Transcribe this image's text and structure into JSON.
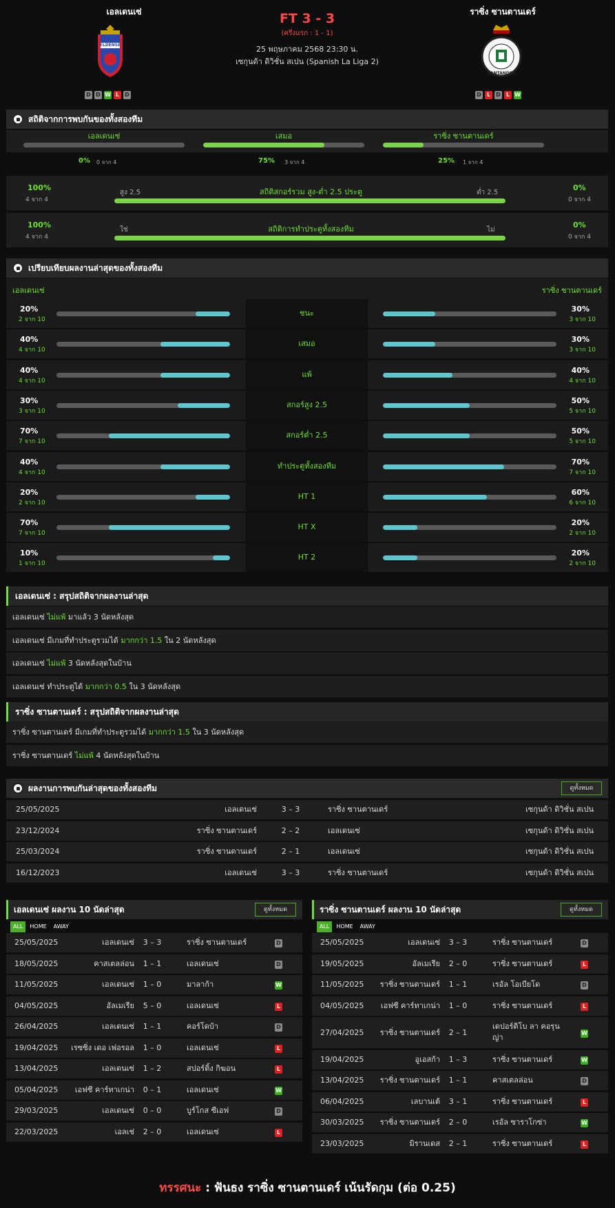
{
  "match": {
    "home_team": "เอลเดนเซ่",
    "away_team": "ราซิ่ง ซานตานเดร์",
    "score": "FT 3 - 3",
    "halftime": "(ครึ่งแรก : 1 - 1)",
    "datetime": "25 พฤษภาคม 2568 23:30 น.",
    "league": "เซกุนด้า ดิวิชั่น สเปน (Spanish La Liga 2)",
    "home_form": [
      "D",
      "D",
      "W",
      "L",
      "D"
    ],
    "away_form": [
      "D",
      "L",
      "D",
      "L",
      "W"
    ],
    "home_logo_text": "ELDENSE",
    "away_logo_text": "SANTANDER"
  },
  "h2h_stats": {
    "title": "สถิติจากการพบกันของทั้งสองทีม",
    "cols": [
      {
        "label": "เอลเดนเซ่",
        "pct": "0%",
        "count": "0 จาก 4",
        "fill": 0
      },
      {
        "label": "เสมอ",
        "pct": "75%",
        "count": "3 จาก 4",
        "fill": 75
      },
      {
        "label": "ราซิ่ง ซานตานเดร์",
        "pct": "25%",
        "count": "1 จาก 4",
        "fill": 25
      }
    ],
    "ou": {
      "left_pct": "100%",
      "left_count": "4 จาก 4",
      "left_label": "สูง 2.5",
      "title": "สถิติสกอร์รวม สูง-ต่ำ 2.5 ประตู",
      "right_label": "ต่ำ 2.5",
      "right_pct": "0%",
      "right_count": "0 จาก 4",
      "fill": 100
    },
    "btts": {
      "left_pct": "100%",
      "left_count": "4 จาก 4",
      "left_label": "ใช่",
      "title": "สถิติการทำประตูทั้งสองทีม",
      "right_label": "ไม่",
      "right_pct": "0%",
      "right_count": "0 จาก 4",
      "fill": 100
    }
  },
  "compare": {
    "title": "เปรียบเทียบผลงานล่าสุดของทั้งสองทีม",
    "home": "เอลเดนเซ่",
    "away": "ราซิ่ง ซานตานเดร์",
    "rows": [
      {
        "label": "ชนะ",
        "hp": "20%",
        "hc": "2 จาก 10",
        "hv": 20,
        "ap": "30%",
        "ac": "3 จาก 10",
        "av": 30
      },
      {
        "label": "เสมอ",
        "hp": "40%",
        "hc": "4 จาก 10",
        "hv": 40,
        "ap": "30%",
        "ac": "3 จาก 10",
        "av": 30
      },
      {
        "label": "แพ้",
        "hp": "40%",
        "hc": "4 จาก 10",
        "hv": 40,
        "ap": "40%",
        "ac": "4 จาก 10",
        "av": 40
      },
      {
        "label": "สกอร์สูง 2.5",
        "hp": "30%",
        "hc": "3 จาก 10",
        "hv": 30,
        "ap": "50%",
        "ac": "5 จาก 10",
        "av": 50
      },
      {
        "label": "สกอร์ต่ำ 2.5",
        "hp": "70%",
        "hc": "7 จาก 10",
        "hv": 70,
        "ap": "50%",
        "ac": "5 จาก 10",
        "av": 50
      },
      {
        "label": "ทำประตูทั้งสองทีม",
        "hp": "40%",
        "hc": "4 จาก 10",
        "hv": 40,
        "ap": "70%",
        "ac": "7 จาก 10",
        "av": 70
      },
      {
        "label": "HT 1",
        "hp": "20%",
        "hc": "2 จาก 10",
        "hv": 20,
        "ap": "60%",
        "ac": "6 จาก 10",
        "av": 60
      },
      {
        "label": "HT X",
        "hp": "70%",
        "hc": "7 จาก 10",
        "hv": 70,
        "ap": "20%",
        "ac": "2 จาก 10",
        "av": 20
      },
      {
        "label": "HT 2",
        "hp": "10%",
        "hc": "1 จาก 10",
        "hv": 10,
        "ap": "20%",
        "ac": "2 จาก 10",
        "av": 20
      }
    ]
  },
  "home_summary": {
    "title": "เอลเดนเซ่ : สรุปสถิติจากผลงานล่าสุด",
    "rows": [
      [
        "เอลเดนเซ่ ",
        "ไม่แพ้",
        " มาแล้ว 3 นัดหลังสุด"
      ],
      [
        "เอลเดนเซ่ มีเกมที่ทำประตูรวมได้ ",
        "มากกว่า 1.5",
        " ใน 2 นัดหลังสุด"
      ],
      [
        "เอลเดนเซ่ ",
        "ไม่แพ้",
        " 3 นัดหลังสุดในบ้าน"
      ],
      [
        "เอลเดนเซ่ ทำประตูได้ ",
        "มากกว่า 0.5",
        " ใน 3 นัดหลังสุด"
      ]
    ]
  },
  "away_summary": {
    "title": "ราซิ่ง ซานตานเดร์ : สรุปสถิติจากผลงานล่าสุด",
    "rows": [
      [
        "ราซิ่ง ซานตานเดร์ มีเกมที่ทำประตูรวมได้ ",
        "มากกว่า 1.5",
        " ใน 3 นัดหลังสุด"
      ],
      [
        "ราซิ่ง ซานตานเดร์ ",
        "ไม่แพ้",
        " 4 นัดหลังสุดในบ้าน"
      ]
    ]
  },
  "h2h": {
    "title": "ผลงานการพบกันล่าสุดของทั้งสองทีม",
    "view_all": "ดูทั้งหมด",
    "rows": [
      {
        "date": "25/05/2025",
        "home": "เอลเดนเซ่",
        "score": "3 – 3",
        "away": "ราซิ่ง ซานตานเดร์",
        "league": "เซกุนด้า ดิวิชั่น สเปน"
      },
      {
        "date": "23/12/2024",
        "home": "ราซิ่ง ซานตานเดร์",
        "score": "2 – 2",
        "away": "เอลเดนเซ่",
        "league": "เซกุนด้า ดิวิชั่น สเปน"
      },
      {
        "date": "25/03/2024",
        "home": "ราซิ่ง ซานตานเดร์",
        "score": "2 – 1",
        "away": "เอลเดนเซ่",
        "league": "เซกุนด้า ดิวิชั่น สเปน"
      },
      {
        "date": "16/12/2023",
        "home": "เอลเดนเซ่",
        "score": "3 – 3",
        "away": "ราซิ่ง ซานตานเดร์",
        "league": "เซกุนด้า ดิวิชั่น สเปน"
      }
    ]
  },
  "home_last10": {
    "title": "เอลเดนเซ่ ผลงาน 10 นัดล่าสุด",
    "view_all": "ดูทั้งหมด",
    "tabs": [
      "ALL",
      "HOME",
      "AWAY"
    ],
    "rows": [
      {
        "date": "25/05/2025",
        "home": "เอลเดนเซ่",
        "score": "3 – 3",
        "away": "ราซิ่ง ซานตานเดร์",
        "res": "D"
      },
      {
        "date": "18/05/2025",
        "home": "คาสเตลล่อน",
        "score": "1 – 1",
        "away": "เอลเดนเซ่",
        "res": "D"
      },
      {
        "date": "11/05/2025",
        "home": "เอลเดนเซ่",
        "score": "1 – 0",
        "away": "มาลาก้า",
        "res": "W"
      },
      {
        "date": "04/05/2025",
        "home": "อัลเมเรีย",
        "score": "5 – 0",
        "away": "เอลเดนเซ่",
        "res": "L"
      },
      {
        "date": "26/04/2025",
        "home": "เอลเดนเซ่",
        "score": "1 – 1",
        "away": "คอร์โดบ้า",
        "res": "D"
      },
      {
        "date": "19/04/2025",
        "home": "เรซซิ่ง เดอ เฟอรอล",
        "score": "1 – 0",
        "away": "เอลเดนเซ่",
        "res": "L"
      },
      {
        "date": "13/04/2025",
        "home": "เอลเดนเซ่",
        "score": "1 – 2",
        "away": "สปอร์ติ้ง กิฆอน",
        "res": "L"
      },
      {
        "date": "05/04/2025",
        "home": "เอฟซี คาร์ทาเกน่า",
        "score": "0 – 1",
        "away": "เอลเดนเซ่",
        "res": "W"
      },
      {
        "date": "29/03/2025",
        "home": "เอลเดนเซ่",
        "score": "0 – 0",
        "away": "บูร์โกส ซีเอฟ",
        "res": "D"
      },
      {
        "date": "22/03/2025",
        "home": "เอลเช่",
        "score": "2 – 0",
        "away": "เอลเดนเซ่",
        "res": "L"
      }
    ]
  },
  "away_last10": {
    "title": "ราซิ่ง ซานตานเดร์ ผลงาน 10 นัดล่าสุด",
    "view_all": "ดูทั้งหมด",
    "tabs": [
      "ALL",
      "HOME",
      "AWAY"
    ],
    "rows": [
      {
        "date": "25/05/2025",
        "home": "เอลเดนเซ่",
        "score": "3 – 3",
        "away": "ราซิ่ง ซานตานเดร์",
        "res": "D"
      },
      {
        "date": "19/05/2025",
        "home": "อัลเมเรีย",
        "score": "2 – 0",
        "away": "ราซิ่ง ซานตานเดร์",
        "res": "L"
      },
      {
        "date": "11/05/2025",
        "home": "ราซิ่ง ซานตานเดร์",
        "score": "1 – 1",
        "away": "เรอัล โอเบียโด",
        "res": "D"
      },
      {
        "date": "04/05/2025",
        "home": "เอฟซี คาร์ทาเกน่า",
        "score": "1 – 0",
        "away": "ราซิ่ง ซานตานเดร์",
        "res": "L"
      },
      {
        "date": "27/04/2025",
        "home": "ราซิ่ง ซานตานเดร์",
        "score": "2 – 1",
        "away": "เดปอร์ติโบ ลา คอรุนญ่า",
        "res": "W"
      },
      {
        "date": "19/04/2025",
        "home": "อูเอสก้า",
        "score": "1 – 3",
        "away": "ราซิ่ง ซานตานเดร์",
        "res": "W"
      },
      {
        "date": "13/04/2025",
        "home": "ราซิ่ง ซานตานเดร์",
        "score": "1 – 1",
        "away": "คาสเตลล่อน",
        "res": "D"
      },
      {
        "date": "06/04/2025",
        "home": "เลบานเต้",
        "score": "3 – 1",
        "away": "ราซิ่ง ซานตานเดร์",
        "res": "L"
      },
      {
        "date": "30/03/2025",
        "home": "ราซิ่ง ซานตานเดร์",
        "score": "2 – 0",
        "away": "เรอัล ซาราโกซ่า",
        "res": "W"
      },
      {
        "date": "23/03/2025",
        "home": "มิรานเดส",
        "score": "2 – 1",
        "away": "ราซิ่ง ซานตานเดร์",
        "res": "L"
      }
    ]
  },
  "prediction": {
    "label": "ทรรศนะ",
    "sep": " : ",
    "text": "ฟันธง ราซิ่ง ซานตานเดร์ เน้นรัดกุม (ต่อ 0.25)"
  }
}
